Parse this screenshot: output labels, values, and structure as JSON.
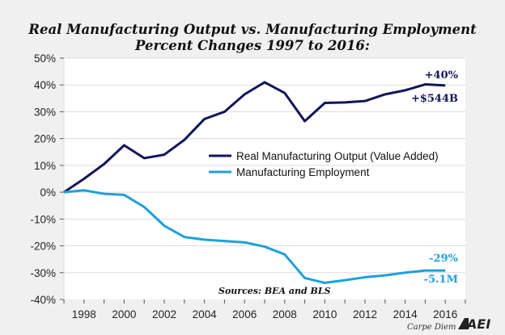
{
  "chart_data": {
    "type": "line",
    "title": "Real Manufacturing Output vs. Manufacturing Employment",
    "subtitle": "Percent Changes 1997 to 2016:",
    "xlabel": "",
    "ylabel": "",
    "xlim": [
      1997,
      2017
    ],
    "ylim": [
      -40,
      50
    ],
    "grid": true,
    "y_ticks": [
      50,
      40,
      30,
      20,
      10,
      0,
      -10,
      -20,
      -30,
      -40
    ],
    "y_tick_labels": [
      "50%",
      "40%",
      "30%",
      "20%",
      "10%",
      "0%",
      "-10%",
      "-20%",
      "-30%",
      "-40%"
    ],
    "x_ticks": [
      1998,
      2000,
      2002,
      2004,
      2006,
      2008,
      2010,
      2012,
      2014,
      2016
    ],
    "x_tick_labels": [
      "1998",
      "2000",
      "2002",
      "2004",
      "2006",
      "2008",
      "2010",
      "2012",
      "2014",
      "2016"
    ],
    "x": [
      1997,
      1998,
      1999,
      2000,
      2001,
      2002,
      2003,
      2004,
      2005,
      2006,
      2007,
      2008,
      2009,
      2010,
      2011,
      2012,
      2013,
      2014,
      2015,
      2016
    ],
    "series": [
      {
        "name": "Real Manufacturing Output (Value Added)",
        "color": "#14145a",
        "values": [
          0,
          5,
          10.5,
          17.5,
          12.7,
          14,
          19.5,
          27.3,
          30,
          36.5,
          41,
          37,
          26.5,
          33.3,
          33.5,
          34,
          36.5,
          38,
          40.2,
          39.8
        ]
      },
      {
        "name": "Manufacturing Employment",
        "color": "#1ea0dc",
        "values": [
          0,
          0.7,
          -0.6,
          -1,
          -5.5,
          -12.5,
          -16.7,
          -17.7,
          -18.2,
          -18.7,
          -20.3,
          -23.2,
          -32,
          -33.8,
          -32.8,
          -31.7,
          -31,
          -30,
          -29.2,
          -29.2
        ]
      }
    ],
    "legend_position": "center-right",
    "annotations": [
      {
        "text": "+40%",
        "series": 0,
        "color": "#14145a"
      },
      {
        "text": "+$544B",
        "series": 0,
        "color": "#14145a"
      },
      {
        "text": "-29%",
        "series": 1,
        "color": "#1ea0dc"
      },
      {
        "text": "-5.1M",
        "series": 1,
        "color": "#1ea0dc"
      }
    ],
    "source": "Sources: BEA and BLS"
  },
  "footer": {
    "blog": "Carpe Diem",
    "logo": "AEI"
  }
}
